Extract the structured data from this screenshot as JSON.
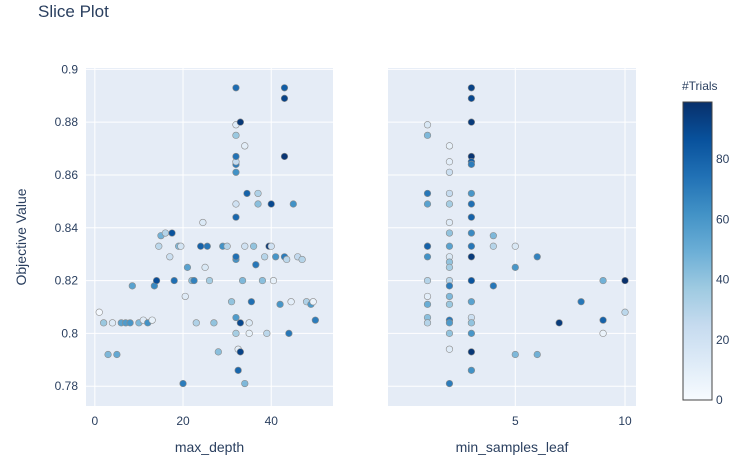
{
  "title": "Slice Plot",
  "colors": {
    "panel_bg": "#e5ecf6",
    "grid": "#ffffff",
    "text": "#2a3f5f",
    "marker_outline": "#8c8c8c"
  },
  "colorbar": {
    "title": "#Trials",
    "range": [
      0,
      99
    ],
    "ticks": [
      "0",
      "20",
      "40",
      "60",
      "80"
    ],
    "tick_values": [
      0,
      20,
      40,
      60,
      80
    ],
    "colorscale": [
      "#f7fbff",
      "#deebf7",
      "#c6dbef",
      "#9ecae1",
      "#6baed6",
      "#4292c6",
      "#2171b5",
      "#08519c",
      "#08306b"
    ]
  },
  "chart_data": [
    {
      "type": "scatter",
      "title": "",
      "xlabel": "max_depth",
      "ylabel": "Objective Value",
      "xlim": [
        -2,
        54
      ],
      "ylim": [
        0.7725,
        0.9005
      ],
      "xticks": [
        "0",
        "20",
        "40"
      ],
      "xtick_values": [
        0,
        20,
        40
      ],
      "yticks": [
        "0.78",
        "0.8",
        "0.82",
        "0.84",
        "0.86",
        "0.88",
        "0.9"
      ],
      "ytick_values": [
        0.78,
        0.8,
        0.82,
        0.84,
        0.86,
        0.88,
        0.9
      ],
      "grid": true,
      "points": [
        [
          1,
          0.808,
          2
        ],
        [
          2,
          0.804,
          38
        ],
        [
          3,
          0.792,
          45
        ],
        [
          4,
          0.804,
          12
        ],
        [
          5,
          0.792,
          52
        ],
        [
          6,
          0.804,
          55
        ],
        [
          7,
          0.804,
          58
        ],
        [
          8,
          0.804,
          60
        ],
        [
          8.5,
          0.818,
          55
        ],
        [
          10,
          0.804,
          45
        ],
        [
          11,
          0.805,
          12
        ],
        [
          12,
          0.804,
          62
        ],
        [
          13,
          0.805,
          8
        ],
        [
          13.5,
          0.818,
          65
        ],
        [
          14,
          0.82,
          88
        ],
        [
          14.5,
          0.833,
          28
        ],
        [
          15,
          0.837,
          48
        ],
        [
          16,
          0.838,
          30
        ],
        [
          17,
          0.829,
          22
        ],
        [
          17.5,
          0.838,
          86
        ],
        [
          18,
          0.82,
          75
        ],
        [
          19,
          0.833,
          45
        ],
        [
          19.5,
          0.833,
          18
        ],
        [
          20,
          0.781,
          70
        ],
        [
          20.5,
          0.814,
          12
        ],
        [
          21,
          0.825,
          55
        ],
        [
          22,
          0.82,
          42
        ],
        [
          22.5,
          0.82,
          68
        ],
        [
          23,
          0.804,
          32
        ],
        [
          24,
          0.833,
          80
        ],
        [
          24.5,
          0.842,
          14
        ],
        [
          25,
          0.825,
          15
        ],
        [
          25.5,
          0.833,
          72
        ],
        [
          26,
          0.82,
          35
        ],
        [
          27,
          0.804,
          40
        ],
        [
          28,
          0.793,
          42
        ],
        [
          29,
          0.833,
          62
        ],
        [
          30,
          0.833,
          30
        ],
        [
          31,
          0.812,
          40
        ],
        [
          32,
          0.8,
          35
        ],
        [
          32,
          0.806,
          58
        ],
        [
          32,
          0.828,
          62
        ],
        [
          32,
          0.829,
          75
        ],
        [
          32,
          0.844,
          78
        ],
        [
          32,
          0.849,
          20
        ],
        [
          32,
          0.861,
          62
        ],
        [
          32,
          0.864,
          70
        ],
        [
          32,
          0.865,
          25
        ],
        [
          32,
          0.867,
          74
        ],
        [
          32,
          0.875,
          38
        ],
        [
          32,
          0.879,
          12
        ],
        [
          32,
          0.893,
          76
        ],
        [
          32.5,
          0.786,
          78
        ],
        [
          32.5,
          0.794,
          10
        ],
        [
          33,
          0.804,
          90
        ],
        [
          33,
          0.793,
          92
        ],
        [
          33,
          0.88,
          96
        ],
        [
          33.5,
          0.82,
          45
        ],
        [
          34,
          0.871,
          10
        ],
        [
          34,
          0.833,
          20
        ],
        [
          34,
          0.781,
          45
        ],
        [
          34.5,
          0.853,
          80
        ],
        [
          35,
          0.8,
          8
        ],
        [
          35,
          0.804,
          14
        ],
        [
          35.5,
          0.812,
          75
        ],
        [
          36,
          0.833,
          40
        ],
        [
          36.5,
          0.826,
          72
        ],
        [
          37,
          0.849,
          42
        ],
        [
          37,
          0.853,
          32
        ],
        [
          38,
          0.82,
          42
        ],
        [
          38.5,
          0.829,
          30
        ],
        [
          39,
          0.8,
          28
        ],
        [
          39.5,
          0.833,
          96
        ],
        [
          40,
          0.833,
          20
        ],
        [
          40,
          0.849,
          90
        ],
        [
          40.5,
          0.82,
          8
        ],
        [
          41,
          0.829,
          60
        ],
        [
          42,
          0.811,
          60
        ],
        [
          43,
          0.893,
          82
        ],
        [
          43,
          0.889,
          92
        ],
        [
          43,
          0.867,
          97
        ],
        [
          43,
          0.829,
          70
        ],
        [
          43.5,
          0.828,
          28
        ],
        [
          44,
          0.8,
          72
        ],
        [
          44.5,
          0.812,
          10
        ],
        [
          45,
          0.849,
          62
        ],
        [
          46,
          0.829,
          26
        ],
        [
          47,
          0.828,
          30
        ],
        [
          48,
          0.812,
          32
        ],
        [
          49,
          0.811,
          58
        ],
        [
          49.5,
          0.812,
          6
        ],
        [
          50,
          0.805,
          70
        ]
      ]
    },
    {
      "type": "scatter",
      "title": "",
      "xlabel": "min_samples_leaf",
      "ylabel": "",
      "xlim": [
        -0.8,
        10.5
      ],
      "ylim": [
        0.7725,
        0.9005
      ],
      "xticks": [
        "5",
        "10"
      ],
      "xtick_values": [
        5,
        10
      ],
      "grid": true,
      "points": [
        [
          1,
          0.879,
          15
        ],
        [
          1,
          0.875,
          45
        ],
        [
          1,
          0.853,
          72
        ],
        [
          1,
          0.849,
          55
        ],
        [
          1,
          0.833,
          96
        ],
        [
          1,
          0.833,
          80
        ],
        [
          1,
          0.829,
          62
        ],
        [
          1,
          0.82,
          30
        ],
        [
          1,
          0.814,
          10
        ],
        [
          1,
          0.811,
          50
        ],
        [
          1,
          0.806,
          42
        ],
        [
          1,
          0.804,
          30
        ],
        [
          2,
          0.871,
          8
        ],
        [
          2,
          0.865,
          10
        ],
        [
          2,
          0.861,
          22
        ],
        [
          2,
          0.853,
          25
        ],
        [
          2,
          0.849,
          35
        ],
        [
          2,
          0.842,
          12
        ],
        [
          2,
          0.838,
          40
        ],
        [
          2,
          0.833,
          55
        ],
        [
          2,
          0.829,
          15
        ],
        [
          2,
          0.827,
          40
        ],
        [
          2,
          0.825,
          35
        ],
        [
          2,
          0.82,
          28
        ],
        [
          2,
          0.818,
          70
        ],
        [
          2,
          0.814,
          45
        ],
        [
          2,
          0.811,
          38
        ],
        [
          2,
          0.805,
          72
        ],
        [
          2,
          0.804,
          58
        ],
        [
          2,
          0.8,
          40
        ],
        [
          2,
          0.794,
          12
        ],
        [
          2,
          0.781,
          70
        ],
        [
          3,
          0.893,
          92
        ],
        [
          3,
          0.889,
          90
        ],
        [
          3,
          0.88,
          95
        ],
        [
          3,
          0.867,
          97
        ],
        [
          3,
          0.865,
          82
        ],
        [
          3,
          0.864,
          70
        ],
        [
          3,
          0.853,
          60
        ],
        [
          3,
          0.849,
          75
        ],
        [
          3,
          0.844,
          80
        ],
        [
          3,
          0.838,
          65
        ],
        [
          3,
          0.833,
          72
        ],
        [
          3,
          0.829,
          95
        ],
        [
          3,
          0.82,
          85
        ],
        [
          3,
          0.812,
          55
        ],
        [
          3,
          0.806,
          22
        ],
        [
          3,
          0.804,
          40
        ],
        [
          3,
          0.8,
          60
        ],
        [
          3,
          0.793,
          96
        ],
        [
          3,
          0.786,
          62
        ],
        [
          4,
          0.837,
          45
        ],
        [
          4,
          0.833,
          30
        ],
        [
          4,
          0.818,
          72
        ],
        [
          5,
          0.833,
          15
        ],
        [
          5,
          0.825,
          60
        ],
        [
          5,
          0.792,
          45
        ],
        [
          6,
          0.829,
          68
        ],
        [
          6,
          0.792,
          48
        ],
        [
          7,
          0.804,
          95
        ],
        [
          8,
          0.812,
          72
        ],
        [
          9,
          0.82,
          48
        ],
        [
          9,
          0.805,
          80
        ],
        [
          9,
          0.8,
          6
        ],
        [
          10,
          0.82,
          99
        ],
        [
          10,
          0.808,
          28
        ]
      ]
    }
  ]
}
